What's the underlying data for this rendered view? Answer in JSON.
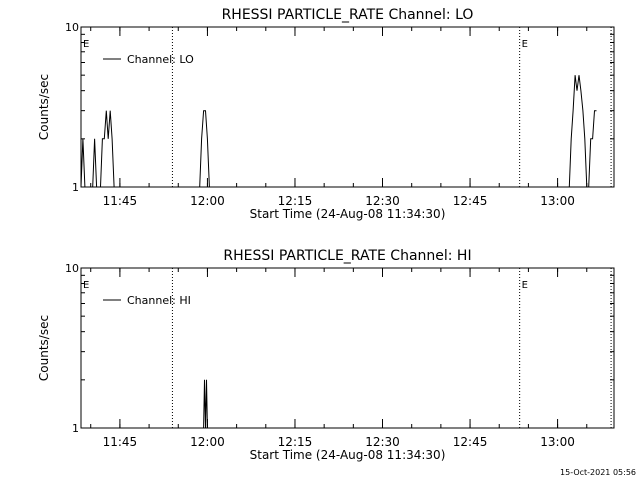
{
  "footer_timestamp": "15-Oct-2021 05:56",
  "chart_data": [
    {
      "type": "line",
      "title": "RHESSI PARTICLE_RATE Channel: LO",
      "xlabel": "Start Time (24-Aug-08 11:34:30)",
      "ylabel": "Counts/sec",
      "yscale": "log",
      "ylim": [
        1,
        10
      ],
      "xlim": [
        "11:38:20",
        "13:09:40"
      ],
      "grid": false,
      "legend_position": "top-left",
      "x_tick_labels": [
        "11:45",
        "12:00",
        "12:15",
        "12:30",
        "12:45",
        "13:00"
      ],
      "y_tick_labels": [
        "1",
        "10"
      ],
      "markers": [
        {
          "time": "11:38:20",
          "label": "E"
        },
        {
          "time": "11:54:00",
          "label": ""
        },
        {
          "time": "12:53:30",
          "label": "E"
        },
        {
          "time": "13:09:10",
          "label": ""
        }
      ],
      "series": [
        {
          "name": "Channel: LO",
          "points": [
            [
              "11:38:20",
              1
            ],
            [
              "11:38:40",
              2
            ],
            [
              "11:39:00",
              1
            ],
            [
              "11:40:20",
              1
            ],
            [
              "11:40:40",
              2
            ],
            [
              "11:41:00",
              1
            ],
            [
              "11:41:40",
              1
            ],
            [
              "11:42:00",
              2
            ],
            [
              "11:42:20",
              2
            ],
            [
              "11:42:40",
              3
            ],
            [
              "11:43:00",
              2
            ],
            [
              "11:43:20",
              3
            ],
            [
              "11:43:40",
              2
            ],
            [
              "11:44:00",
              1
            ],
            [
              "11:44:20",
              1
            ],
            [
              "11:58:40",
              1
            ],
            [
              "11:59:00",
              2
            ],
            [
              "11:59:20",
              3
            ],
            [
              "11:59:40",
              3
            ],
            [
              "12:00:00",
              2
            ],
            [
              "12:00:20",
              1
            ],
            [
              "13:02:00",
              1
            ],
            [
              "13:02:20",
              2
            ],
            [
              "13:02:40",
              3
            ],
            [
              "13:03:00",
              5
            ],
            [
              "13:03:20",
              4
            ],
            [
              "13:03:40",
              5
            ],
            [
              "13:04:00",
              4
            ],
            [
              "13:04:20",
              3
            ],
            [
              "13:04:40",
              2
            ],
            [
              "13:05:00",
              1
            ],
            [
              "13:05:20",
              1
            ],
            [
              "13:05:40",
              2
            ],
            [
              "13:06:00",
              2
            ],
            [
              "13:06:20",
              3
            ],
            [
              "13:06:40",
              3
            ]
          ]
        }
      ]
    },
    {
      "type": "line",
      "title": "RHESSI PARTICLE_RATE Channel: HI",
      "xlabel": "Start Time (24-Aug-08 11:34:30)",
      "ylabel": "Counts/sec",
      "yscale": "log",
      "ylim": [
        1,
        10
      ],
      "xlim": [
        "11:38:20",
        "13:09:40"
      ],
      "grid": false,
      "legend_position": "top-left",
      "x_tick_labels": [
        "11:45",
        "12:00",
        "12:15",
        "12:30",
        "12:45",
        "13:00"
      ],
      "y_tick_labels": [
        "1",
        "10"
      ],
      "markers": [
        {
          "time": "11:38:20",
          "label": "E"
        },
        {
          "time": "11:54:00",
          "label": ""
        },
        {
          "time": "12:53:30",
          "label": "E"
        },
        {
          "time": "13:09:10",
          "label": ""
        }
      ],
      "series": [
        {
          "name": "Channel: HI",
          "points": [
            [
              "11:59:20",
              1
            ],
            [
              "11:59:30",
              2
            ],
            [
              "11:59:40",
              1
            ],
            [
              "11:59:50",
              2
            ],
            [
              "12:00:00",
              1
            ]
          ]
        }
      ]
    }
  ]
}
